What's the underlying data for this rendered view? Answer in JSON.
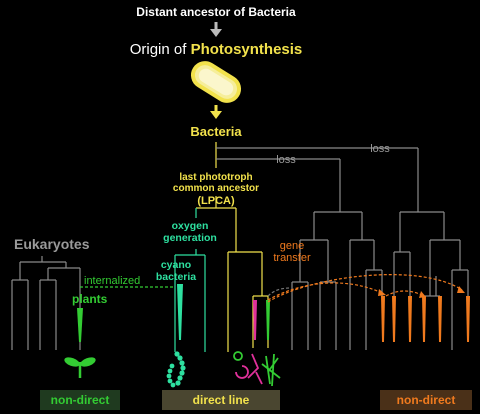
{
  "labels": {
    "top": "Distant ancestor of Bacteria",
    "origin_prefix": "Origin of ",
    "origin_emph": "Photosynthesis",
    "bacteria": "Bacteria",
    "loss1": "loss",
    "loss2": "loss",
    "lpca_line1": "last phototroph",
    "lpca_line2": "common ancestor",
    "lpca_line3": "(LPCA)",
    "oxygen_line1": "oxygen",
    "oxygen_line2": "generation",
    "cyano_line1": "cyano",
    "cyano_line2": "bacteria",
    "eukaryotes": "Eukaryotes",
    "internalized": "internalized",
    "plants": "plants",
    "gene_line1": "gene",
    "gene_line2": "transfer"
  },
  "badges": {
    "left": "non-direct",
    "center": "direct line",
    "right": "non-direct"
  },
  "colors": {
    "background": "#000000",
    "yellow": "#f2e24c",
    "gray": "#8a8a8a",
    "cyan_green": "#2ee0a0",
    "green": "#33cc33",
    "orange": "#f07a1e",
    "magenta": "#e0309a",
    "badge_left_bg": "#1f3a1f",
    "badge_center_bg": "#4a4630",
    "badge_right_bg": "#4a3018"
  },
  "icons": [
    "arrow-down-icon",
    "bacterium-icon",
    "seedling-icon",
    "cyanobacteria-chain-icon",
    "diverse-bacteria-icon"
  ]
}
